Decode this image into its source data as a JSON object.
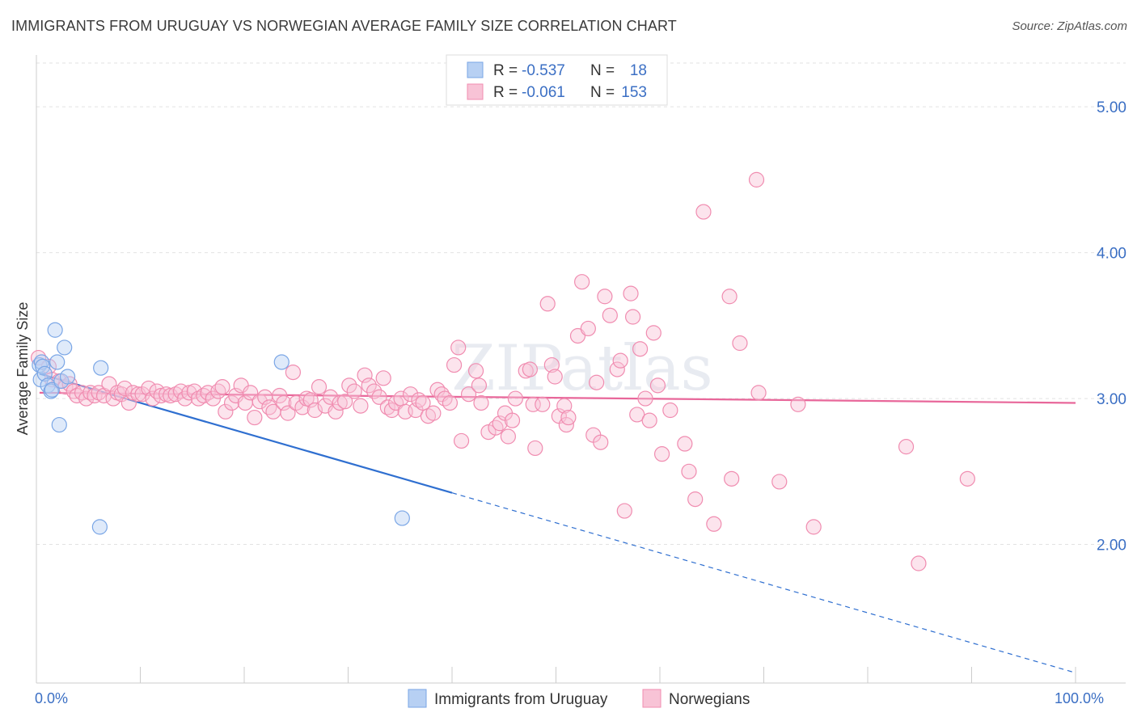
{
  "title": "IMMIGRANTS FROM URUGUAY VS NORWEGIAN AVERAGE FAMILY SIZE CORRELATION CHART",
  "source": "Source: ZipAtlas.com",
  "watermark": "ZIPatlas",
  "chart_data": {
    "type": "scatter",
    "ylabel": "Average Family Size",
    "xlim": [
      0,
      100
    ],
    "ylim": [
      1.05,
      5.3
    ],
    "x_tick_labels": [
      "0.0%",
      "100.0%"
    ],
    "y_ticks": [
      2.0,
      3.0,
      4.0,
      5.0
    ],
    "y_tick_labels": [
      "2.00",
      "3.00",
      "4.00",
      "5.00"
    ],
    "grid": true,
    "legend_top": [
      {
        "r_label": "R = ",
        "r_value": "-0.537",
        "n_label": "N = ",
        "n_value": "18"
      },
      {
        "r_label": "R = ",
        "r_value": "-0.061",
        "n_label": "N = ",
        "n_value": "153"
      }
    ],
    "series": [
      {
        "name": "Immigrants from Uruguay",
        "color": "#7aa6e6",
        "line_color": "#2f6fd0",
        "trend": {
          "x0": 0.3,
          "y0": 3.17,
          "x_solid_end": 40,
          "x1": 100,
          "y1": 1.12
        },
        "points": [
          [
            0.3,
            3.23
          ],
          [
            0.4,
            3.13
          ],
          [
            0.5,
            3.25
          ],
          [
            0.6,
            3.22
          ],
          [
            0.8,
            3.17
          ],
          [
            1.1,
            3.09
          ],
          [
            1.4,
            3.05
          ],
          [
            1.5,
            3.06
          ],
          [
            1.8,
            3.47
          ],
          [
            2.0,
            3.25
          ],
          [
            2.2,
            2.82
          ],
          [
            2.4,
            3.12
          ],
          [
            2.7,
            3.35
          ],
          [
            3.0,
            3.15
          ],
          [
            6.1,
            2.12
          ],
          [
            6.2,
            3.21
          ],
          [
            23.6,
            3.25
          ],
          [
            35.2,
            2.18
          ]
        ]
      },
      {
        "name": "Norwegians",
        "color": "#f08cb0",
        "line_color": "#e8679a",
        "trend": {
          "x0": 0.3,
          "y0": 3.04,
          "x1": 100,
          "y1": 2.97
        },
        "points": [
          [
            0.2,
            3.28
          ],
          [
            1.2,
            3.22
          ],
          [
            1.5,
            3.13
          ],
          [
            2.2,
            3.12
          ],
          [
            2.8,
            3.08
          ],
          [
            3.2,
            3.1
          ],
          [
            3.6,
            3.05
          ],
          [
            3.9,
            3.02
          ],
          [
            4.4,
            3.04
          ],
          [
            4.8,
            3.0
          ],
          [
            5.2,
            3.04
          ],
          [
            5.6,
            3.02
          ],
          [
            6.0,
            3.04
          ],
          [
            6.5,
            3.02
          ],
          [
            7.0,
            3.1
          ],
          [
            7.4,
            3.0
          ],
          [
            7.8,
            3.04
          ],
          [
            8.2,
            3.03
          ],
          [
            8.5,
            3.07
          ],
          [
            8.9,
            2.97
          ],
          [
            9.3,
            3.04
          ],
          [
            9.8,
            3.03
          ],
          [
            10.2,
            3.03
          ],
          [
            10.8,
            3.07
          ],
          [
            11.2,
            3.0
          ],
          [
            11.6,
            3.05
          ],
          [
            12.0,
            3.02
          ],
          [
            12.5,
            3.03
          ],
          [
            12.9,
            3.02
          ],
          [
            13.4,
            3.03
          ],
          [
            13.9,
            3.05
          ],
          [
            14.3,
            3.0
          ],
          [
            14.7,
            3.04
          ],
          [
            15.2,
            3.05
          ],
          [
            15.6,
            3.0
          ],
          [
            16.1,
            3.02
          ],
          [
            16.5,
            3.04
          ],
          [
            17.0,
            3.0
          ],
          [
            17.5,
            3.05
          ],
          [
            17.9,
            3.08
          ],
          [
            18.2,
            2.91
          ],
          [
            18.8,
            2.97
          ],
          [
            19.2,
            3.02
          ],
          [
            19.7,
            3.09
          ],
          [
            20.1,
            2.97
          ],
          [
            20.6,
            3.04
          ],
          [
            21.0,
            2.87
          ],
          [
            21.5,
            2.98
          ],
          [
            22.0,
            3.01
          ],
          [
            22.4,
            2.94
          ],
          [
            22.8,
            2.91
          ],
          [
            23.4,
            3.02
          ],
          [
            23.8,
            2.97
          ],
          [
            24.2,
            2.9
          ],
          [
            24.7,
            3.18
          ],
          [
            25.0,
            2.97
          ],
          [
            25.6,
            2.94
          ],
          [
            26.0,
            3.0
          ],
          [
            26.4,
            2.99
          ],
          [
            26.8,
            2.92
          ],
          [
            27.2,
            3.08
          ],
          [
            27.8,
            2.95
          ],
          [
            28.3,
            3.01
          ],
          [
            28.8,
            2.91
          ],
          [
            29.2,
            2.97
          ],
          [
            29.7,
            2.98
          ],
          [
            30.1,
            3.09
          ],
          [
            30.6,
            3.05
          ],
          [
            31.2,
            2.95
          ],
          [
            31.6,
            3.16
          ],
          [
            32.0,
            3.09
          ],
          [
            32.5,
            3.05
          ],
          [
            33.0,
            3.01
          ],
          [
            33.4,
            3.14
          ],
          [
            33.8,
            2.94
          ],
          [
            34.2,
            2.92
          ],
          [
            34.6,
            2.97
          ],
          [
            35.1,
            3.0
          ],
          [
            35.5,
            2.91
          ],
          [
            36.0,
            3.03
          ],
          [
            36.5,
            2.92
          ],
          [
            36.8,
            2.99
          ],
          [
            37.2,
            2.97
          ],
          [
            37.7,
            2.88
          ],
          [
            38.2,
            2.9
          ],
          [
            38.6,
            3.06
          ],
          [
            39.0,
            3.03
          ],
          [
            39.3,
            3.0
          ],
          [
            39.8,
            2.97
          ],
          [
            40.2,
            3.23
          ],
          [
            40.6,
            3.35
          ],
          [
            40.9,
            2.71
          ],
          [
            41.6,
            3.03
          ],
          [
            42.3,
            3.19
          ],
          [
            42.6,
            3.09
          ],
          [
            42.8,
            2.97
          ],
          [
            43.5,
            2.77
          ],
          [
            44.2,
            2.8
          ],
          [
            44.6,
            2.83
          ],
          [
            45.1,
            2.9
          ],
          [
            45.4,
            2.74
          ],
          [
            45.8,
            2.85
          ],
          [
            46.1,
            3.0
          ],
          [
            47.1,
            3.19
          ],
          [
            47.5,
            3.2
          ],
          [
            47.8,
            2.96
          ],
          [
            48.0,
            2.66
          ],
          [
            48.7,
            2.96
          ],
          [
            49.2,
            3.65
          ],
          [
            49.6,
            3.23
          ],
          [
            49.9,
            3.15
          ],
          [
            50.3,
            2.88
          ],
          [
            50.8,
            2.95
          ],
          [
            51.0,
            2.82
          ],
          [
            51.2,
            2.87
          ],
          [
            52.1,
            3.43
          ],
          [
            52.5,
            3.8
          ],
          [
            53.1,
            3.48
          ],
          [
            53.6,
            2.75
          ],
          [
            53.9,
            3.11
          ],
          [
            54.3,
            2.7
          ],
          [
            54.7,
            3.7
          ],
          [
            55.2,
            3.57
          ],
          [
            55.9,
            3.2
          ],
          [
            56.2,
            3.26
          ],
          [
            56.6,
            2.23
          ],
          [
            57.2,
            3.72
          ],
          [
            57.4,
            3.56
          ],
          [
            57.8,
            2.89
          ],
          [
            58.1,
            3.34
          ],
          [
            58.6,
            3.0
          ],
          [
            59.0,
            2.85
          ],
          [
            59.4,
            3.45
          ],
          [
            59.8,
            3.09
          ],
          [
            60.2,
            2.62
          ],
          [
            61.0,
            2.92
          ],
          [
            62.4,
            2.69
          ],
          [
            62.8,
            2.5
          ],
          [
            63.4,
            2.31
          ],
          [
            64.2,
            4.28
          ],
          [
            65.2,
            2.14
          ],
          [
            66.7,
            3.7
          ],
          [
            66.9,
            2.45
          ],
          [
            67.7,
            3.38
          ],
          [
            69.3,
            4.5
          ],
          [
            69.5,
            3.04
          ],
          [
            71.5,
            2.43
          ],
          [
            73.3,
            2.96
          ],
          [
            74.8,
            2.12
          ],
          [
            83.7,
            2.67
          ],
          [
            84.9,
            1.87
          ],
          [
            89.6,
            2.45
          ]
        ]
      }
    ]
  }
}
